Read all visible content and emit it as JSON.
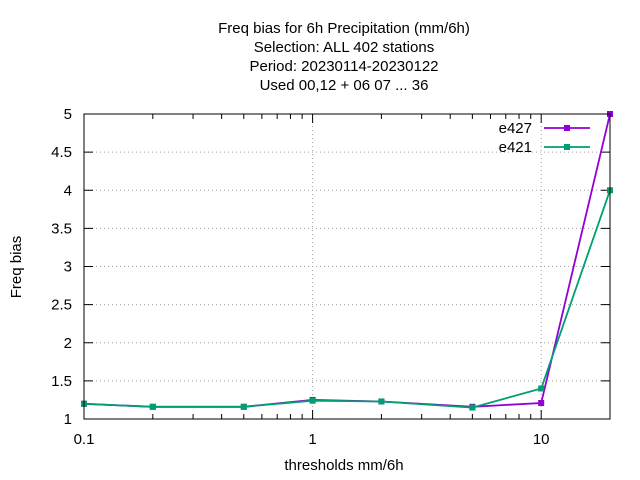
{
  "chart_data": {
    "type": "line",
    "title_lines": [
      "Freq bias  for 6h Precipitation (mm/6h)",
      "Selection: ALL    402 stations",
      "Period: 20230114-20230122",
      "Used  00,12  + 06 07 ... 36"
    ],
    "xlabel": "thresholds mm/6h",
    "ylabel": "Freq bias",
    "xscale": "log",
    "xlim": [
      0.1,
      20
    ],
    "ylim": [
      1,
      5
    ],
    "xticks": [
      0.1,
      1,
      10
    ],
    "xtick_labels": [
      "0.1",
      "1",
      "10"
    ],
    "yticks": [
      1,
      1.5,
      2,
      2.5,
      3,
      3.5,
      4,
      4.5,
      5
    ],
    "ytick_labels": [
      "1",
      "1.5",
      "2",
      "2.5",
      "3",
      "3.5",
      "4",
      "4.5",
      "5"
    ],
    "grid": true,
    "legend_position": "top-right",
    "x": [
      0.1,
      0.2,
      0.5,
      1,
      2,
      5,
      10,
      20
    ],
    "series": [
      {
        "name": "e427",
        "color": "#9400d3",
        "values": [
          1.2,
          1.16,
          1.16,
          1.25,
          1.23,
          1.16,
          1.21,
          5.0
        ]
      },
      {
        "name": "e421",
        "color": "#009e73",
        "values": [
          1.2,
          1.16,
          1.16,
          1.24,
          1.23,
          1.15,
          1.4,
          4.0
        ]
      }
    ]
  }
}
